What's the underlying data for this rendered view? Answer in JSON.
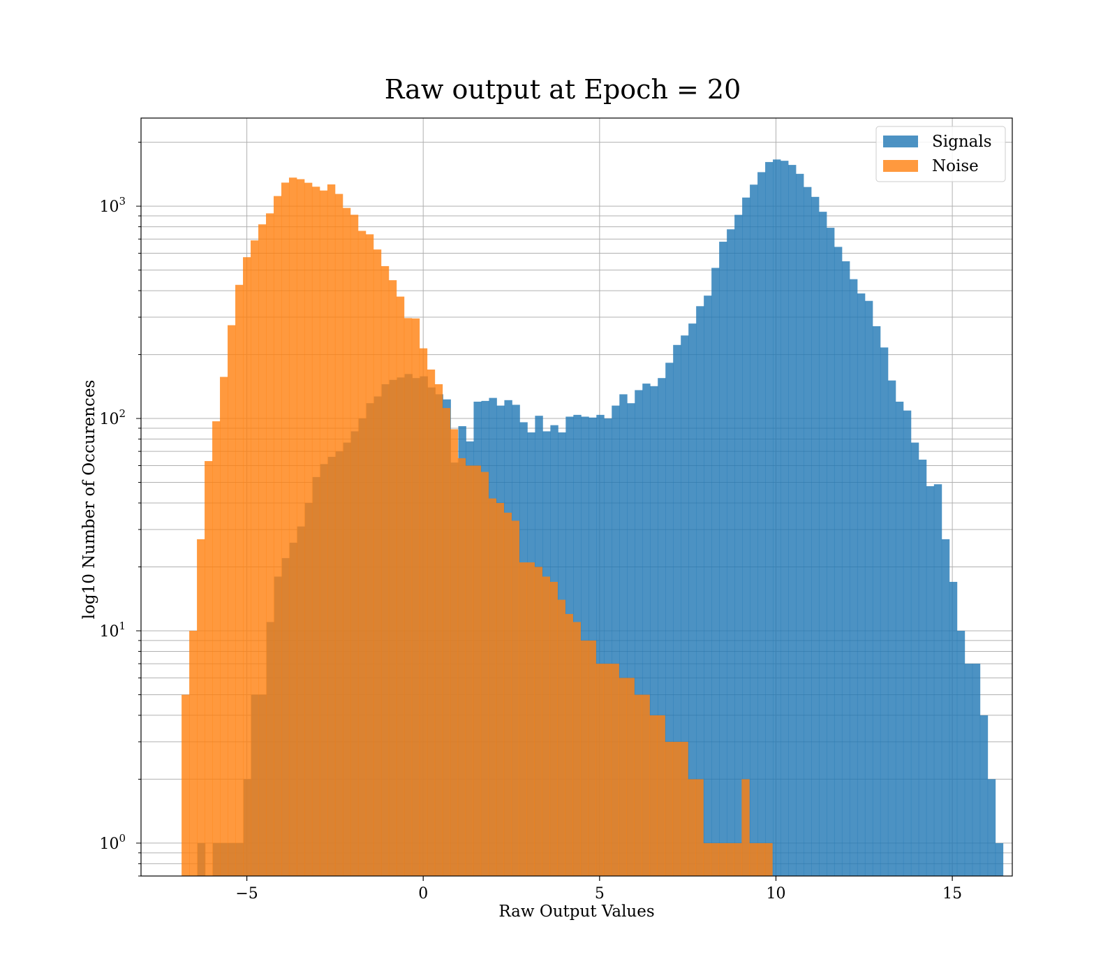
{
  "chart_data": {
    "type": "bar",
    "title": "Raw output at Epoch = 20",
    "xlabel": "Raw Output Values",
    "ylabel": "log10 Number of Occurences",
    "xlim": [
      -8.0,
      16.7
    ],
    "ylim": [
      0.7,
      2600
    ],
    "yscale": "log",
    "grid": true,
    "legend_position": "top-right",
    "x_ticks": [
      {
        "value": -5,
        "label": "−5"
      },
      {
        "value": 0,
        "label": "0"
      },
      {
        "value": 5,
        "label": "5"
      },
      {
        "value": 10,
        "label": "10"
      },
      {
        "value": 15,
        "label": "15"
      }
    ],
    "y_ticks": [
      {
        "value": 1,
        "base": "10",
        "exp": "0"
      },
      {
        "value": 10,
        "base": "10",
        "exp": "1"
      },
      {
        "value": 100,
        "base": "10",
        "exp": "2"
      },
      {
        "value": 1000,
        "base": "10",
        "exp": "3"
      }
    ],
    "series": [
      {
        "name": "Signals",
        "color": "#1f77b4",
        "opacity": 0.8,
        "bin_start": -6.4,
        "bin_width": 0.2175,
        "values": [
          1,
          0,
          1,
          1,
          1,
          1,
          2,
          5,
          5,
          11,
          18,
          22,
          26,
          31,
          40,
          53,
          61,
          66,
          70,
          77,
          87,
          100,
          118,
          127,
          145,
          152,
          156,
          162,
          155,
          158,
          140,
          130,
          123,
          62,
          92,
          78,
          120,
          121,
          125,
          115,
          122,
          116,
          96,
          86,
          103,
          87,
          93,
          86,
          102,
          104,
          102,
          101,
          104,
          100,
          115,
          130,
          118,
          136,
          146,
          142,
          155,
          183,
          222,
          246,
          280,
          338,
          379,
          512,
          680,
          778,
          910,
          1098,
          1263,
          1446,
          1614,
          1659,
          1636,
          1564,
          1420,
          1231,
          1106,
          941,
          791,
          643,
          550,
          453,
          388,
          358,
          272,
          216,
          151,
          120,
          109,
          77,
          64,
          48,
          49,
          27,
          17,
          10,
          7,
          7,
          4,
          2,
          1
        ]
      },
      {
        "name": "Noise",
        "color": "#ff7f0e",
        "opacity": 0.8,
        "bin_start": -6.85,
        "bin_width": 0.2175,
        "values": [
          5,
          10,
          27,
          63,
          97,
          157,
          275,
          426,
          575,
          690,
          821,
          925,
          1116,
          1291,
          1363,
          1340,
          1289,
          1235,
          1185,
          1266,
          1142,
          981,
          911,
          765,
          737,
          625,
          522,
          448,
          375,
          297,
          296,
          214,
          170,
          145,
          112,
          89,
          65,
          60,
          60,
          56,
          42,
          40,
          36,
          33,
          21,
          21,
          20,
          18,
          17,
          14,
          12,
          11,
          9,
          9,
          7,
          7,
          7,
          6,
          6,
          5,
          5,
          4,
          4,
          3,
          3,
          3,
          2,
          2,
          1,
          1,
          1,
          1,
          1,
          2,
          1,
          1,
          1
        ]
      }
    ]
  }
}
